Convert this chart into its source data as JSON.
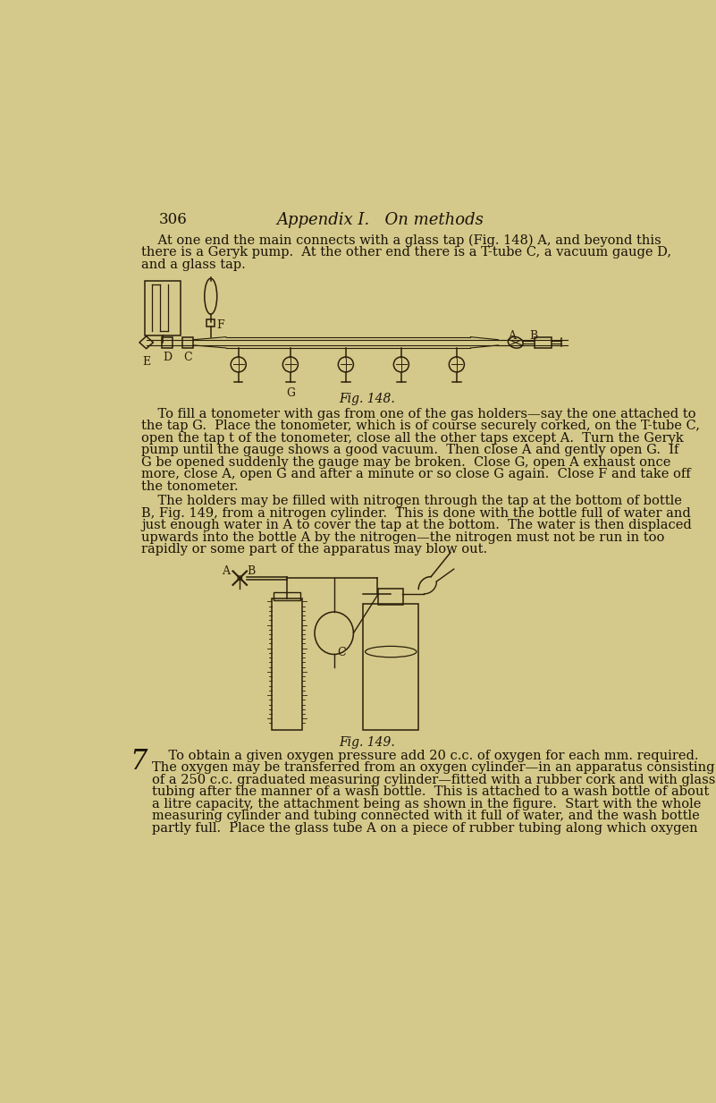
{
  "bg_color": "#d4c98a",
  "text_color": "#1a1208",
  "draw_color": "#2a1f0a",
  "page_number": "306",
  "title": "Appendix I.   On methods",
  "para1_lines": [
    "    At one end the main connects with a glass tap (Fig. 148) A, and beyond this",
    "there is a Geryk pump.  At the other end there is a T-tube C, a vacuum gauge D,",
    "and a glass tap."
  ],
  "fig148_caption": "Fig. 148.",
  "para2_lines": [
    "    To fill a tonometer with gas from one of the gas holders—say the one attached to",
    "the tap G.  Place the tonometer, which is of course securely corked, on the T-tube C,",
    "open the tap t of the tonometer, close all the other taps except A.  Turn the Geryk",
    "pump until the gauge shows a good vacuum.  Then close A and gently open G.  If",
    "G be opened suddenly the gauge may be broken.  Close G, open A exhaust once",
    "more, close A, open G and after a minute or so close G again.  Close F and take off",
    "the tonometer."
  ],
  "para3_lines": [
    "    The holders may be filled with nitrogen through the tap at the bottom of bottle",
    "B, Fig. 149, from a nitrogen cylinder.  This is done with the bottle full of water and",
    "just enough water in A to cover the tap at the bottom.  The water is then displaced",
    "upwards into the bottle A by the nitrogen—the nitrogen must not be run in too",
    "rapidly or some part of the apparatus may blow out."
  ],
  "fig149_caption": "Fig. 149.",
  "para4_lines": [
    "    To obtain a given oxygen pressure add 20 c.c. of oxygen for each mm. required.",
    "The oxygen may be transferred from an oxygen cylinder—in an apparatus consisting",
    "of a 250 c.c. graduated measuring cylinder—fitted with a rubber cork and with glass",
    "tubing after the manner of a wash bottle.  This is attached to a wash bottle of about",
    "a litre capacity, the attachment being as shown in the figure.  Start with the whole",
    "measuring cylinder and tubing connected with it full of water, and the wash bottle",
    "partly full.  Place the glass tube A on a piece of rubber tubing along which oxygen"
  ],
  "footnote_number": "7"
}
